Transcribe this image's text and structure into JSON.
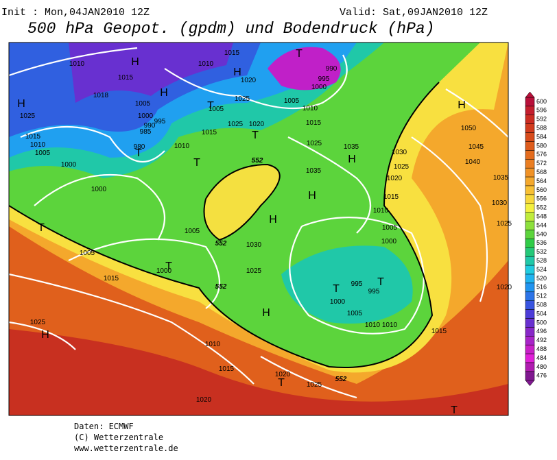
{
  "header": {
    "init": "Init : Mon,04JAN2010 12Z",
    "valid": "Valid: Sat,09JAN2010 12Z",
    "title": "500 hPa Geopot. (gpdm) und Bodendruck (hPa)"
  },
  "footer": [
    "Daten: ECMWF",
    "(C) Wetterzentrale",
    "www.wetterzentrale.de"
  ],
  "colorbar": {
    "levels": [
      600,
      596,
      592,
      588,
      584,
      580,
      576,
      572,
      568,
      564,
      560,
      556,
      552,
      548,
      544,
      540,
      536,
      532,
      528,
      524,
      520,
      516,
      512,
      508,
      504,
      500,
      496,
      492,
      488,
      484,
      480,
      476
    ],
    "colors": [
      "#b8103a",
      "#c41e2e",
      "#cc2c22",
      "#d23c1e",
      "#d84c1c",
      "#de5c1c",
      "#e46c1e",
      "#ea7e22",
      "#f09226",
      "#f4a82c",
      "#f8c034",
      "#f8d83c",
      "#f4f040",
      "#c0ec3c",
      "#8ce03c",
      "#5cd43c",
      "#30cc48",
      "#24c878",
      "#20c8a8",
      "#20cce0",
      "#20b4f0",
      "#2094f0",
      "#2c74e8",
      "#3854e0",
      "#4c3cd8",
      "#6830d0",
      "#8828c8",
      "#a824c8",
      "#c820c8",
      "#e020d8",
      "#b01cb0",
      "#801890"
    ]
  },
  "isobar_labels": [
    "1010",
    "1015",
    "1018",
    "1025",
    "1005",
    "1000",
    "995",
    "990",
    "985",
    "980",
    "1015",
    "1010",
    "1005",
    "1000",
    "1010",
    "1015",
    "1020",
    "1025",
    "1005",
    "1015",
    "1010",
    "1025",
    "1020",
    "1005",
    "1010",
    "995",
    "1000",
    "990",
    "1015",
    "1025",
    "1035",
    "1030",
    "1025",
    "1020",
    "1015",
    "1010",
    "1005",
    "1000",
    "1050",
    "1045",
    "1040",
    "1035",
    "1030",
    "1025",
    "1020",
    "1035",
    "1030",
    "1025",
    "1000",
    "1005",
    "1015",
    "1005",
    "1000",
    "995",
    "995",
    "1000",
    "1005",
    "1010",
    "1010",
    "1015",
    "1010",
    "1015",
    "1020",
    "1020",
    "1025",
    "1025"
  ],
  "markers": [
    "H",
    "H",
    "H",
    "H",
    "H",
    "H",
    "H",
    "H",
    "H",
    "H",
    "T",
    "T",
    "T",
    "T",
    "T",
    "T",
    "T",
    "T",
    "T",
    "T",
    "T"
  ],
  "contour_labels": [
    "552",
    "552",
    "552",
    "552"
  ]
}
